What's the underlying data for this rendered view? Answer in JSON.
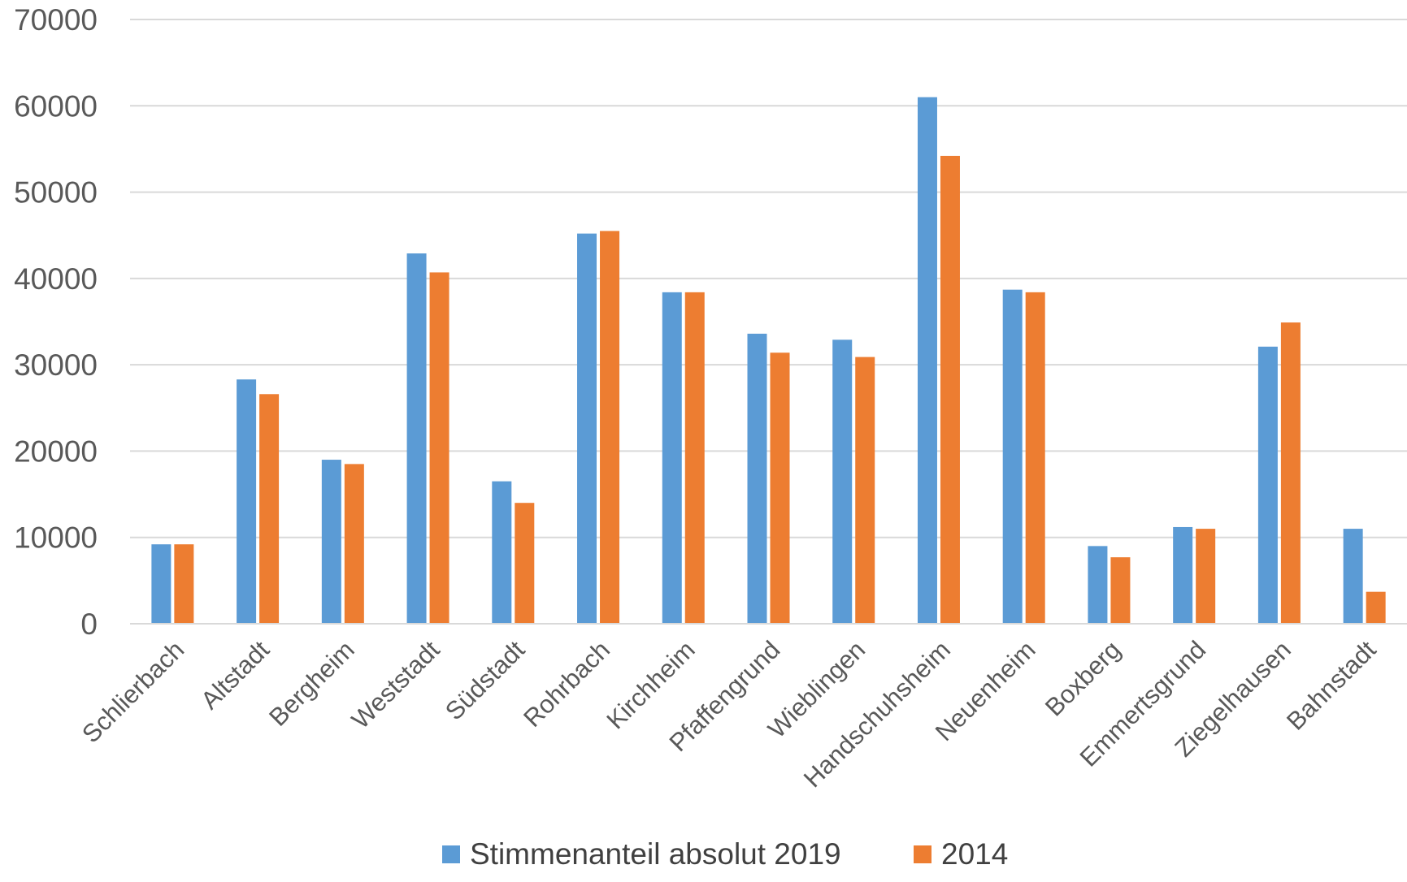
{
  "chart_data": {
    "type": "bar",
    "title": "",
    "xlabel": "",
    "ylabel": "",
    "ylim": [
      0,
      70000
    ],
    "yticks": [
      0,
      10000,
      20000,
      30000,
      40000,
      50000,
      60000,
      70000
    ],
    "grid": true,
    "legend_position": "bottom",
    "categories": [
      "Schlierbach",
      "Altstadt",
      "Bergheim",
      "Weststadt",
      "Südstadt",
      "Rohrbach",
      "Kirchheim",
      "Pfaffengrund",
      "Wieblingen",
      "Handschuhsheim",
      "Neuenheim",
      "Boxberg",
      "Emmertsgrund",
      "Ziegelhausen",
      "Bahnstadt"
    ],
    "series": [
      {
        "name": "Stimmenanteil absolut 2019",
        "color": "#5B9BD5",
        "values": [
          9200,
          28300,
          19000,
          42900,
          16500,
          45200,
          38400,
          33600,
          32900,
          61000,
          38700,
          9000,
          11200,
          32100,
          11000
        ]
      },
      {
        "name": "2014",
        "color": "#ED7D31",
        "values": [
          9200,
          26600,
          18500,
          40700,
          14000,
          45500,
          38400,
          31400,
          30900,
          54200,
          38400,
          7700,
          11000,
          34900,
          3700
        ]
      }
    ]
  }
}
